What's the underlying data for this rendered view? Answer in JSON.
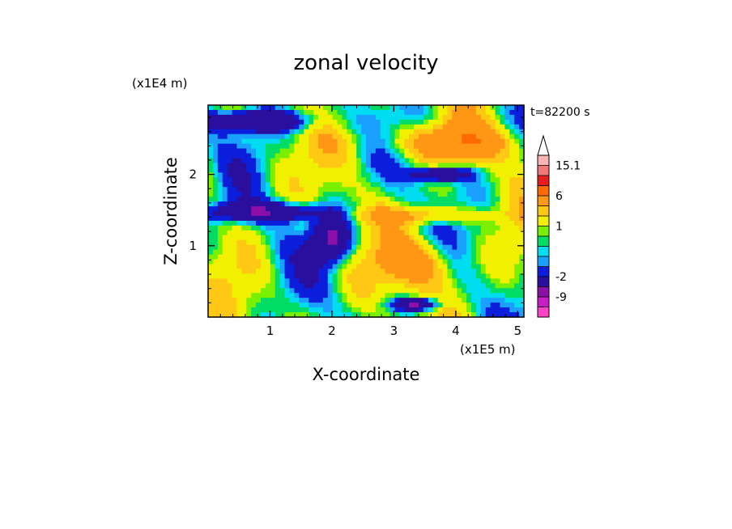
{
  "chart_data": {
    "type": "heatmap",
    "title": "zonal velocity",
    "xlabel": "X-coordinate",
    "ylabel": "Z-coordinate",
    "x_unit": "(x1E5 m)",
    "y_unit": "(x1E4 m)",
    "time_label": "t=82200 s",
    "xlim": [
      0.0,
      5.1
    ],
    "ylim": [
      0.0,
      2.97
    ],
    "x_ticks": [
      "1",
      "2",
      "3",
      "4",
      "5"
    ],
    "y_ticks": [
      "1",
      "2"
    ],
    "colorbar_levels": [
      -15,
      -12,
      -9,
      -6,
      -2,
      -1,
      -0.5,
      0,
      0.5,
      1,
      2,
      3,
      6,
      9,
      12,
      15.1
    ],
    "colorbar_labels": [
      "15.1",
      "6",
      "1",
      "-2",
      "-9"
    ],
    "colors": [
      "#ff44c8",
      "#c81ec8",
      "#8c0fa8",
      "#2a0f9e",
      "#0a1edc",
      "#1aa0ff",
      "#00dcf0",
      "#00dc64",
      "#78f000",
      "#f0f000",
      "#ffc814",
      "#ff9614",
      "#ff6a00",
      "#e61e1e",
      "#f07878",
      "#ffb4b4"
    ],
    "field_summary": {
      "grid": {
        "nx": 66,
        "nz": 44
      },
      "features": [
        {
          "kind": "negative band",
          "x": [
            0.0,
            1.6
          ],
          "z": [
            2.6,
            2.9
          ],
          "value": -6
        },
        {
          "kind": "negative band",
          "x": [
            0.0,
            1.8
          ],
          "z": [
            1.35,
            1.6
          ],
          "value": -6
        },
        {
          "kind": "negative blob",
          "x": [
            1.7,
            2.3
          ],
          "z": [
            0.8,
            1.4
          ],
          "value": -7
        },
        {
          "kind": "negative band",
          "x": [
            3.3,
            4.2
          ],
          "z": [
            1.9,
            2.1
          ],
          "value": -6
        },
        {
          "kind": "negative blob",
          "x": [
            3.0,
            3.7
          ],
          "z": [
            0.1,
            0.25
          ],
          "value": -7
        },
        {
          "kind": "positive region",
          "x": [
            2.8,
            4.0
          ],
          "z": [
            0.4,
            1.1
          ],
          "value": 4
        },
        {
          "kind": "positive band",
          "x": [
            2.4,
            4.6
          ],
          "z": [
            1.3,
            1.55
          ],
          "value": 3
        },
        {
          "kind": "positive region",
          "x": [
            2.8,
            5.1
          ],
          "z": [
            2.2,
            2.7
          ],
          "value": 4
        }
      ]
    }
  }
}
